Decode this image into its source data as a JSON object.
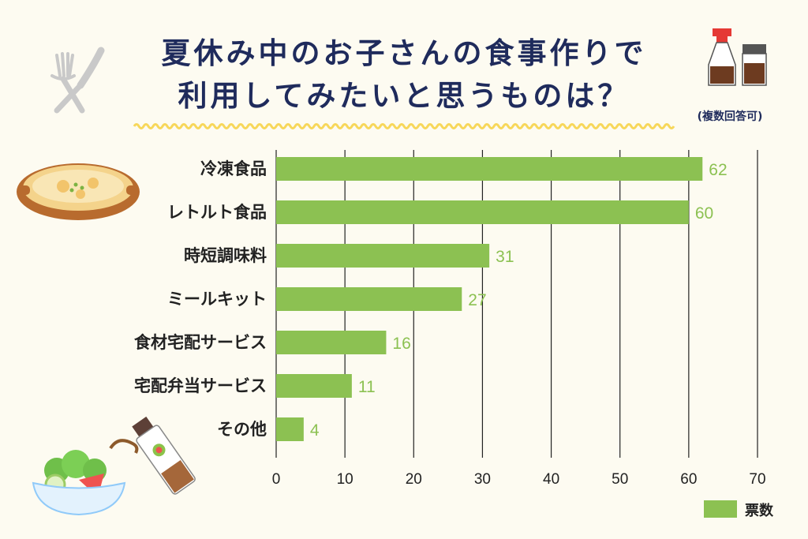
{
  "title_line1": "夏休み中のお子さんの食事作りで",
  "title_line2": "利用してみたいと思うものは？",
  "note": "(複数回答可)",
  "colors": {
    "bar": "#8cc152",
    "title": "#1f2b5c",
    "background": "#fdfbf1",
    "wave": "#f7d75a"
  },
  "icons": [
    "fork-knife-icon",
    "soy-sauce-bottle-icon",
    "gratin-dish-icon",
    "salad-bowl-icon",
    "dressing-bottle-icon"
  ],
  "chart_data": {
    "type": "bar",
    "orientation": "horizontal",
    "categories": [
      "冷凍食品",
      "レトルト食品",
      "時短調味料",
      "ミールキット",
      "食材宅配サービス",
      "宅配弁当サービス",
      "その他"
    ],
    "series": [
      {
        "name": "票数",
        "values": [
          62,
          60,
          31,
          27,
          16,
          11,
          4
        ]
      }
    ],
    "xlim": [
      0,
      70
    ],
    "xticks": [
      "0",
      "10",
      "20",
      "30",
      "40",
      "50",
      "60",
      "70"
    ],
    "grid": true,
    "legend": "bottom-right",
    "data_labels": true
  }
}
